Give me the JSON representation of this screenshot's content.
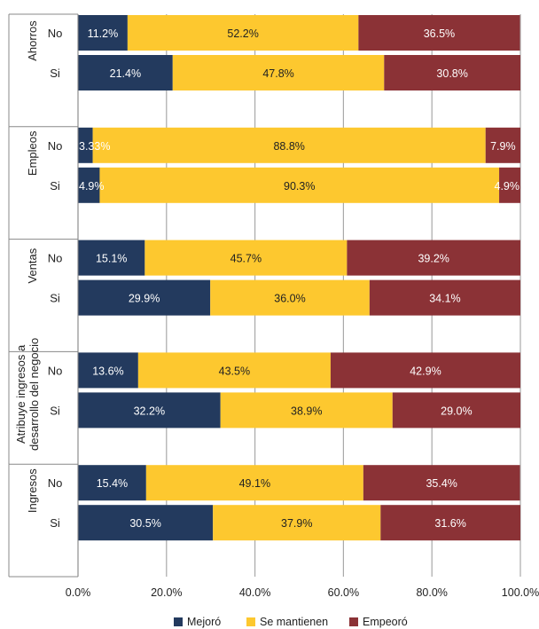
{
  "chart_data": {
    "type": "bar",
    "orientation": "horizontal",
    "stacked": true,
    "xlim": [
      0,
      100
    ],
    "x_ticks": [
      "0.0%",
      "20.0%",
      "40.0%",
      "60.0%",
      "80.0%",
      "100.0%"
    ],
    "grid": true,
    "legend_position": "bottom",
    "series": [
      {
        "name": "Mejoró",
        "color": "#233a5e"
      },
      {
        "name": "Se mantienen",
        "color": "#fdc82f"
      },
      {
        "name": "Empeoró",
        "color": "#8b3236"
      }
    ],
    "groups": [
      {
        "name": "Ahorros",
        "rows": [
          {
            "label": "No",
            "values": [
              11.2,
              52.2,
              36.5
            ],
            "labels": [
              "11.2%",
              "52.2%",
              "36.5%"
            ]
          },
          {
            "label": "Si",
            "values": [
              21.4,
              47.8,
              30.8
            ],
            "labels": [
              "21.4%",
              "47.8%",
              "30.8%"
            ]
          }
        ]
      },
      {
        "name": "Empleos",
        "rows": [
          {
            "label": "No",
            "values": [
              3.33,
              88.8,
              7.9
            ],
            "labels": [
              "3.33%",
              "88.8%",
              "7.9%"
            ]
          },
          {
            "label": "Si",
            "values": [
              4.9,
              90.3,
              4.9
            ],
            "labels": [
              "4.9%",
              "90.3%",
              "4.9%"
            ]
          }
        ]
      },
      {
        "name": "Ventas",
        "rows": [
          {
            "label": "No",
            "values": [
              15.1,
              45.7,
              39.2
            ],
            "labels": [
              "15.1%",
              "45.7%",
              "39.2%"
            ]
          },
          {
            "label": "Si",
            "values": [
              29.9,
              36.0,
              34.1
            ],
            "labels": [
              "29.9%",
              "36.0%",
              "34.1%"
            ]
          }
        ]
      },
      {
        "name": "Atribuye ingresos a desarrollo del negocio",
        "name_lines": [
          "Atribuye ingresos a",
          "desarrollo del negocio"
        ],
        "rows": [
          {
            "label": "No",
            "values": [
              13.6,
              43.5,
              42.9
            ],
            "labels": [
              "13.6%",
              "43.5%",
              "42.9%"
            ]
          },
          {
            "label": "Si",
            "values": [
              32.2,
              38.9,
              29.0
            ],
            "labels": [
              "32.2%",
              "38.9%",
              "29.0%"
            ]
          }
        ]
      },
      {
        "name": "Ingresos",
        "rows": [
          {
            "label": "No",
            "values": [
              15.4,
              49.1,
              35.4
            ],
            "labels": [
              "15.4%",
              "49.1%",
              "35.4%"
            ]
          },
          {
            "label": "Si",
            "values": [
              30.5,
              37.9,
              31.6
            ],
            "labels": [
              "30.5%",
              "37.9%",
              "31.6%"
            ]
          }
        ]
      }
    ]
  }
}
